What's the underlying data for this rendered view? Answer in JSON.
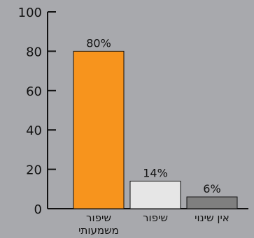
{
  "chart_data": {
    "type": "bar",
    "categories": [
      [
        "שיפור",
        "משמעותי"
      ],
      [
        "שיפור"
      ],
      [
        "אין שינוי"
      ]
    ],
    "values": [
      80,
      14,
      6
    ],
    "data_labels": [
      "80%",
      "14%",
      "6%"
    ],
    "colors": [
      "#f7941d",
      "#e6e6e6",
      "#7f7f7f"
    ],
    "ylim": [
      0,
      100
    ],
    "yticks": [
      0,
      20,
      40,
      60,
      80,
      100
    ],
    "title": "",
    "xlabel": "",
    "ylabel": "",
    "grid": false,
    "legend": false
  }
}
